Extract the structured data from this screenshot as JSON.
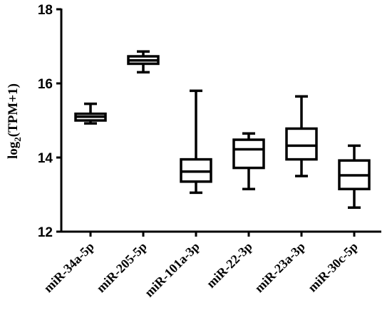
{
  "chart_data": {
    "type": "boxplot",
    "title": "",
    "xlabel": "",
    "ylabel": {
      "prefix": "log",
      "subscript": "2",
      "suffix": "(TPM+1)"
    },
    "ylim": [
      12,
      18
    ],
    "yticks": [
      "12",
      "14",
      "16",
      "18"
    ],
    "grid": false,
    "categories": [
      "miR-34a-5p",
      "miR-205-5p",
      "miR-101a-3p",
      "miR-22-3p",
      "miR-23a-3p",
      "miR-30c-5p"
    ],
    "boxes": [
      {
        "min": 14.92,
        "q1": 15.0,
        "median": 15.1,
        "q3": 15.18,
        "max": 15.45
      },
      {
        "min": 16.3,
        "q1": 16.53,
        "median": 16.62,
        "q3": 16.73,
        "max": 16.86
      },
      {
        "min": 13.05,
        "q1": 13.35,
        "median": 13.62,
        "q3": 13.95,
        "max": 15.8
      },
      {
        "min": 13.15,
        "q1": 13.72,
        "median": 14.22,
        "q3": 14.48,
        "max": 14.65
      },
      {
        "min": 13.5,
        "q1": 13.95,
        "median": 14.32,
        "q3": 14.78,
        "max": 15.65
      },
      {
        "min": 12.65,
        "q1": 13.15,
        "median": 13.52,
        "q3": 13.92,
        "max": 14.32
      }
    ]
  }
}
